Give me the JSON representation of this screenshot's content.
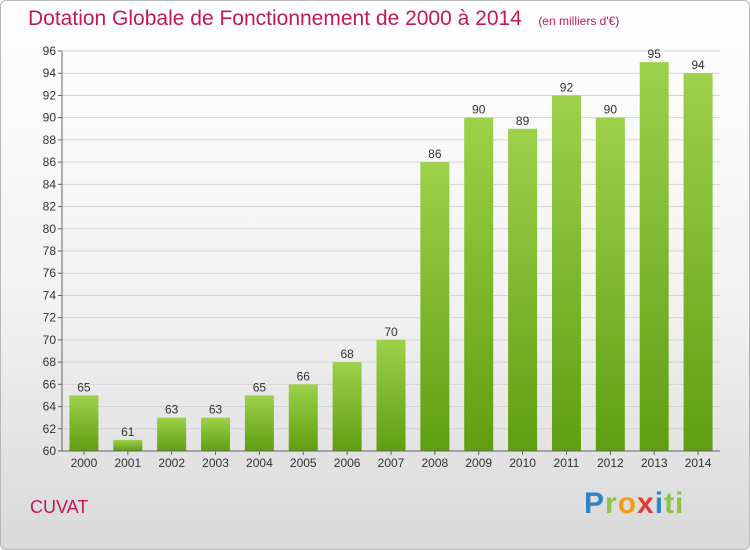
{
  "title": "Dotation Globale de Fonctionnement de 2000 à 2014",
  "unit_note": "(en milliers d'€)",
  "commune": "CUVAT",
  "logo_text": "Proxiti",
  "chart_data": {
    "type": "bar",
    "categories": [
      "2000",
      "2001",
      "2002",
      "2003",
      "2004",
      "2005",
      "2006",
      "2007",
      "2008",
      "2009",
      "2010",
      "2011",
      "2012",
      "2013",
      "2014"
    ],
    "values": [
      65,
      61,
      63,
      63,
      65,
      66,
      68,
      70,
      86,
      90,
      89,
      92,
      90,
      95,
      94
    ],
    "ylim": [
      60,
      96
    ],
    "yticks": [
      60,
      62,
      64,
      66,
      68,
      70,
      72,
      74,
      76,
      78,
      80,
      82,
      84,
      86,
      88,
      90,
      92,
      94,
      96
    ],
    "grid": true,
    "colors": {
      "bar_top": "#9dd14a",
      "bar_bottom": "#5f9e12",
      "title": "#c2185b"
    }
  }
}
